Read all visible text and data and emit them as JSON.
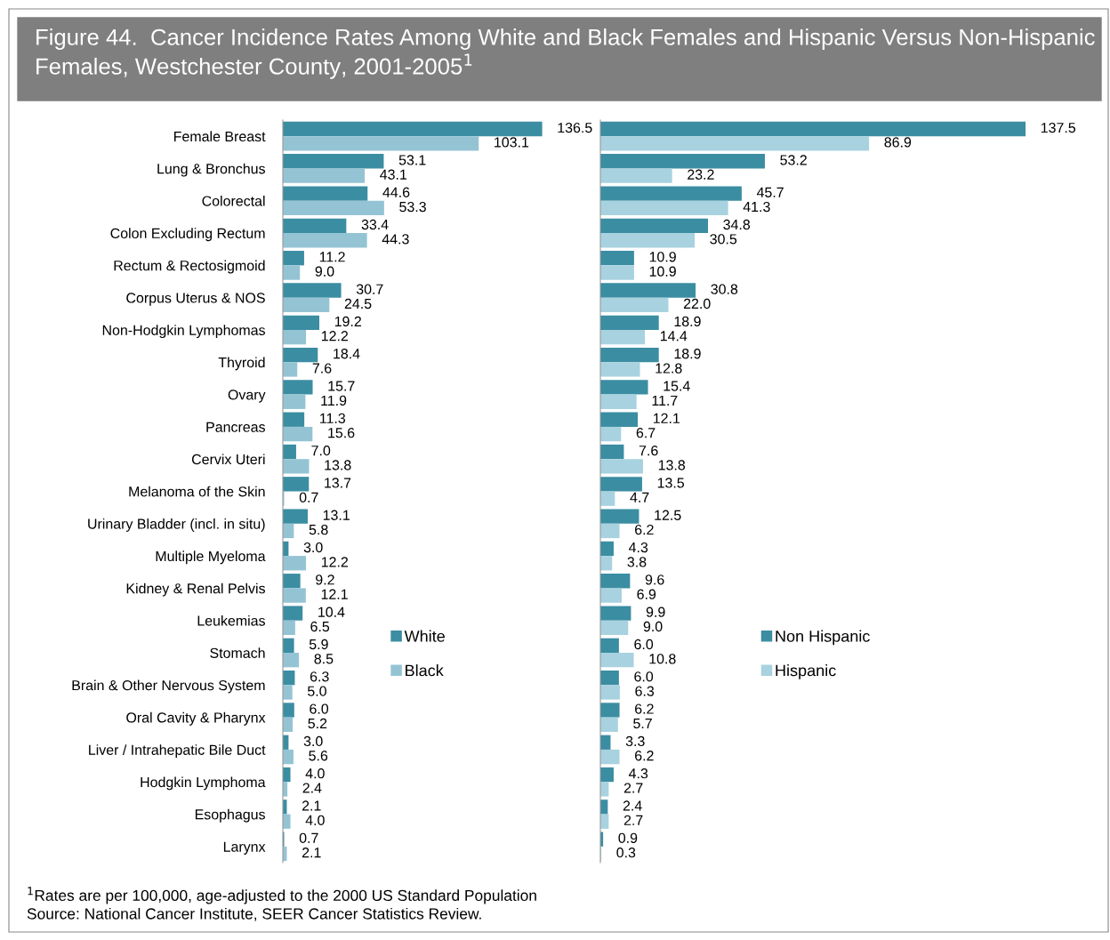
{
  "chart_data": [
    {
      "type": "bar",
      "orientation": "horizontal",
      "title": "Figure 44.  Cancer Incidence Rates Among White and Black Females and Hispanic Versus Non-Hispanic Females, Westchester County, 2001-2005$^{1}$",
      "categories": [
        "Female Breast",
        "Lung & Bronchus",
        "Colorectal",
        "Colon Excluding Rectum",
        "Rectum & Rectosigmoid",
        "Corpus Uterus & NOS",
        "Non-Hodgkin Lymphomas",
        "Thyroid",
        "Ovary",
        "Pancreas",
        "Cervix Uteri",
        "Melanoma of the Skin",
        "Urinary Bladder (incl. in situ)",
        "Multiple Myeloma",
        "Kidney & Renal Pelvis",
        "Leukemias",
        "Stomach",
        "Brain & Other Nervous System",
        "Oral Cavity & Pharynx",
        "Liver / Intrahepatic Bile Duct",
        "Hodgkin Lymphoma",
        "Esophagus",
        "Larynx"
      ],
      "series": [
        {
          "name": "White",
          "color": "#3b8da2",
          "values": [
            136.5,
            53.1,
            44.6,
            33.4,
            11.2,
            30.7,
            19.2,
            18.4,
            15.7,
            11.3,
            7.0,
            13.7,
            13.1,
            3.0,
            9.2,
            10.4,
            5.9,
            6.3,
            6.0,
            3.0,
            4.0,
            2.1,
            0.7
          ],
          "value_labels": [
            "136.5",
            "53.1",
            "44.6",
            "33.4",
            "11.2",
            "30.7",
            "19.2",
            "18.4",
            "15.7",
            "11.3",
            "7.0",
            "13.7",
            "13.1",
            "3.0",
            "9.2",
            "10.4",
            "5.9",
            "6.3",
            "6.0",
            "3.0",
            "4.0",
            "2.1",
            "0.7"
          ]
        },
        {
          "name": "Black",
          "color": "#94c4d4",
          "values": [
            103.1,
            43.1,
            53.3,
            44.3,
            9.0,
            24.5,
            12.2,
            7.6,
            11.9,
            15.6,
            13.8,
            0.7,
            5.8,
            12.2,
            12.1,
            6.5,
            8.5,
            5.0,
            5.2,
            5.6,
            2.4,
            4.0,
            2.1
          ],
          "value_labels": [
            "103.1",
            "43.1",
            "53.3",
            "44.3",
            "9.0",
            "24.5",
            "12.2",
            "7.6",
            "11.9",
            "15.6",
            "13.8",
            "0.7",
            "5.8",
            "12.2",
            "12.1",
            "6.5",
            "8.5",
            "5.0",
            "5.2",
            "5.6",
            "2.4",
            "4.0",
            "2.1"
          ]
        }
      ],
      "legend": "right",
      "annotations": [
        "$^{1}$Rates are per 100,000, age-adjusted to the 2000 US Standard Population",
        "Source: National Cancer Institute, SEER Cancer Statistics Review."
      ]
    },
    {
      "type": "bar",
      "orientation": "horizontal",
      "categories": [
        null,
        null,
        null,
        null,
        null,
        null,
        null,
        null,
        null,
        null,
        null,
        null,
        null,
        null,
        null,
        null,
        null,
        null,
        null,
        null,
        null,
        null,
        null
      ],
      "series": [
        {
          "name": "Non Hispanic",
          "color": "#3b8da2",
          "values": [
            137.5,
            53.2,
            45.7,
            34.8,
            10.9,
            30.8,
            18.9,
            18.9,
            15.4,
            12.1,
            7.6,
            13.5,
            12.5,
            4.3,
            9.6,
            9.9,
            6.0,
            6.0,
            6.2,
            3.3,
            4.3,
            2.4,
            0.9
          ],
          "value_labels": [
            "137.5",
            "53.2",
            "45.7",
            "34.8",
            "10.9",
            "30.8",
            "18.9",
            "18.9",
            "15.4",
            "12.1",
            "7.6",
            "13.5",
            "12.5",
            "4.3",
            "9.6",
            "9.9",
            "6.0",
            "6.0",
            "6.2",
            "3.3",
            "4.3",
            "2.4",
            "0.9"
          ]
        },
        {
          "name": "Hispanic",
          "color": "#a8d2df",
          "values": [
            86.9,
            23.2,
            41.3,
            30.5,
            10.9,
            22.0,
            14.4,
            12.8,
            11.7,
            6.7,
            13.8,
            4.7,
            6.2,
            3.8,
            6.9,
            9.0,
            10.8,
            6.3,
            5.7,
            6.2,
            2.7,
            2.7,
            0.3
          ],
          "value_labels": [
            "86.9",
            "23.2",
            "41.3",
            "30.5",
            "10.9",
            "22.0",
            "14.4",
            "12.8",
            "11.7",
            "6.7",
            "13.8",
            "4.7",
            "6.2",
            "3.8",
            "6.9",
            "9.0",
            "10.8",
            "6.3",
            "5.7",
            "6.2",
            "2.7",
            "2.7",
            "0.3"
          ]
        }
      ],
      "legend": "right"
    }
  ]
}
